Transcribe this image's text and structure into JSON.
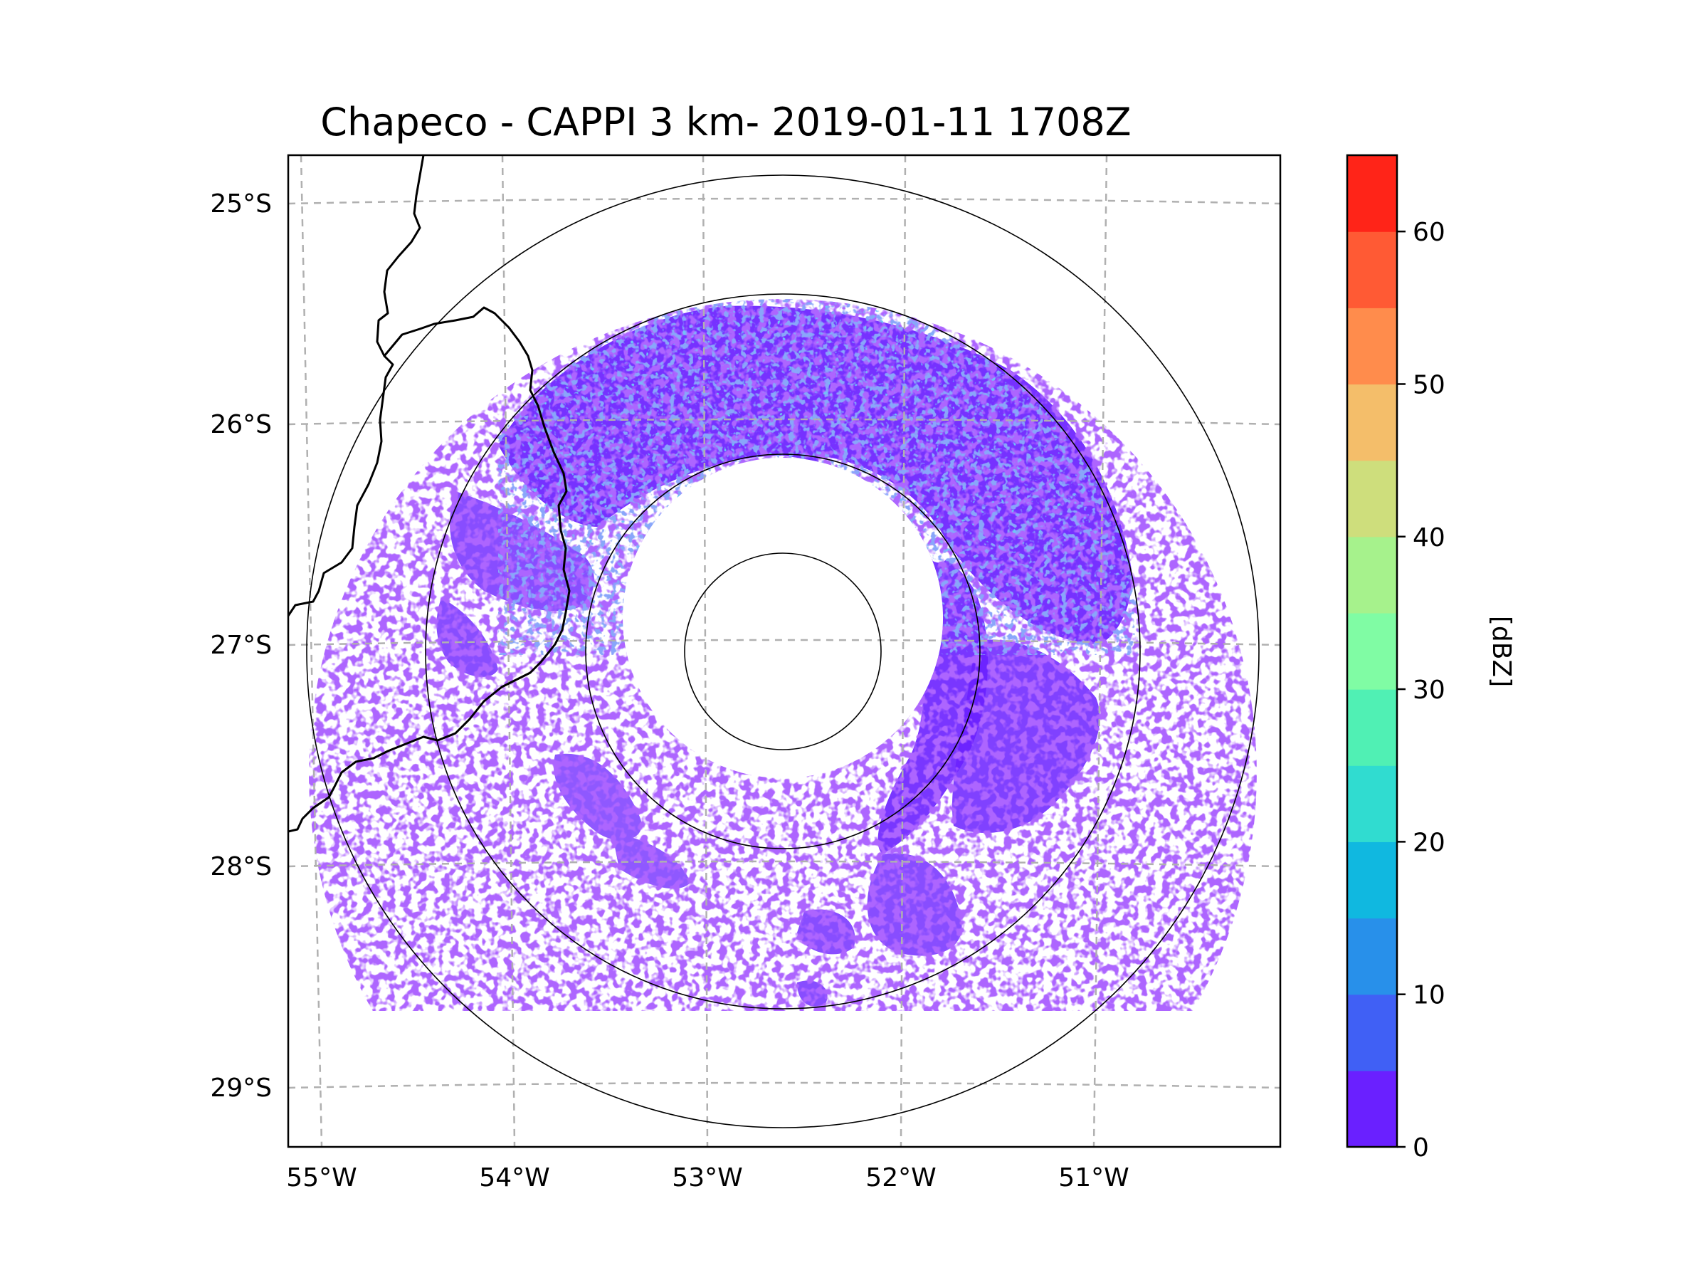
{
  "title": "Chapeco - CAPPI 3 km- 2019-01-11 1708Z",
  "map": {
    "lat_labels": [
      "25°S",
      "26°S",
      "27°S",
      "28°S",
      "29°S"
    ],
    "lon_labels": [
      "55°W",
      "54°W",
      "53°W",
      "52°W",
      "51°W"
    ],
    "field": "reflectivity",
    "dominant_color": "#6a20ff"
  },
  "colorbar": {
    "label": "[dBZ]",
    "tick_labels": [
      "0",
      "10",
      "20",
      "30",
      "40",
      "50",
      "60"
    ],
    "levels": [
      0,
      5,
      10,
      15,
      20,
      25,
      30,
      35,
      40,
      45,
      50,
      55,
      60,
      65
    ],
    "colors": [
      "#6a20ff",
      "#4060f5",
      "#2890ea",
      "#10b8e0",
      "#30dcd0",
      "#50f0b4",
      "#80fca4",
      "#a6f28c",
      "#cede7c",
      "#f4be6a",
      "#ff8c4c",
      "#ff5a34",
      "#ff2418"
    ]
  }
}
